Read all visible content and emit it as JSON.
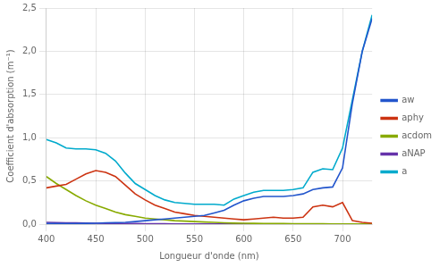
{
  "chart_data": {
    "type": "line",
    "x_label": "Longueur d'onde (nm)",
    "y_label": "Coefficient d'absorption (m⁻¹)",
    "x": [
      400,
      410,
      420,
      430,
      440,
      450,
      460,
      470,
      480,
      490,
      500,
      510,
      520,
      530,
      540,
      550,
      560,
      570,
      580,
      590,
      600,
      610,
      620,
      630,
      640,
      650,
      660,
      670,
      680,
      690,
      700,
      710,
      720,
      730
    ],
    "series": [
      {
        "name": "aw",
        "color": "#2255cc",
        "values": [
          0.006,
          0.007,
          0.007,
          0.008,
          0.009,
          0.01,
          0.015,
          0.017,
          0.02,
          0.03,
          0.04,
          0.05,
          0.06,
          0.07,
          0.08,
          0.09,
          0.1,
          0.13,
          0.16,
          0.22,
          0.27,
          0.3,
          0.32,
          0.32,
          0.32,
          0.33,
          0.35,
          0.4,
          0.42,
          0.43,
          0.65,
          1.4,
          2.0,
          2.38
        ]
      },
      {
        "name": "aphy",
        "color": "#cc3311",
        "values": [
          0.42,
          0.44,
          0.46,
          0.52,
          0.58,
          0.62,
          0.6,
          0.55,
          0.45,
          0.35,
          0.28,
          0.22,
          0.18,
          0.14,
          0.12,
          0.1,
          0.09,
          0.08,
          0.07,
          0.06,
          0.05,
          0.06,
          0.07,
          0.08,
          0.07,
          0.07,
          0.08,
          0.2,
          0.22,
          0.2,
          0.25,
          0.04,
          0.02,
          0.01
        ]
      },
      {
        "name": "acdom",
        "color": "#88aa00",
        "values": [
          0.55,
          0.47,
          0.4,
          0.33,
          0.27,
          0.22,
          0.18,
          0.14,
          0.11,
          0.09,
          0.07,
          0.06,
          0.05,
          0.04,
          0.035,
          0.03,
          0.025,
          0.02,
          0.015,
          0.012,
          0.01,
          0.009,
          0.008,
          0.007,
          0.006,
          0.005,
          0.005,
          0.004,
          0.004,
          0.003,
          0.003,
          0.002,
          0.002,
          0.002
        ]
      },
      {
        "name": "aNAP",
        "color": "#6633aa",
        "values": [
          0.02,
          0.018,
          0.016,
          0.014,
          0.012,
          0.01,
          0.009,
          0.008,
          0.007,
          0.006,
          0.005,
          0.004,
          0.004,
          0.003,
          0.003,
          0.003,
          0.002,
          0.002,
          0.002,
          0.002,
          0.002,
          0.002,
          0.002,
          0.002,
          0.002,
          0.002,
          0.002,
          0.002,
          0.002,
          0.002,
          0.002,
          0.001,
          0.001,
          0.001
        ]
      },
      {
        "name": "a",
        "color": "#00aacc",
        "values": [
          0.98,
          0.94,
          0.88,
          0.87,
          0.87,
          0.86,
          0.82,
          0.73,
          0.59,
          0.47,
          0.4,
          0.33,
          0.28,
          0.25,
          0.24,
          0.23,
          0.23,
          0.23,
          0.22,
          0.29,
          0.33,
          0.37,
          0.39,
          0.39,
          0.39,
          0.4,
          0.42,
          0.6,
          0.64,
          0.63,
          0.88,
          1.44,
          2.0,
          2.42
        ]
      }
    ],
    "xlim": [
      400,
      730
    ],
    "xticks": [
      400,
      450,
      500,
      550,
      600,
      650,
      700
    ],
    "ylim": [
      0.0,
      2.5
    ],
    "yticks": [
      {
        "value": 0.0,
        "label": "0,0"
      },
      {
        "value": 0.5,
        "label": "0,5"
      },
      {
        "value": 1.0,
        "label": "1,0"
      },
      {
        "value": 1.5,
        "label": "1,5"
      },
      {
        "value": 2.0,
        "label": "2,0"
      },
      {
        "value": 2.5,
        "label": "2,5"
      }
    ],
    "grid": true,
    "legend": "right"
  }
}
